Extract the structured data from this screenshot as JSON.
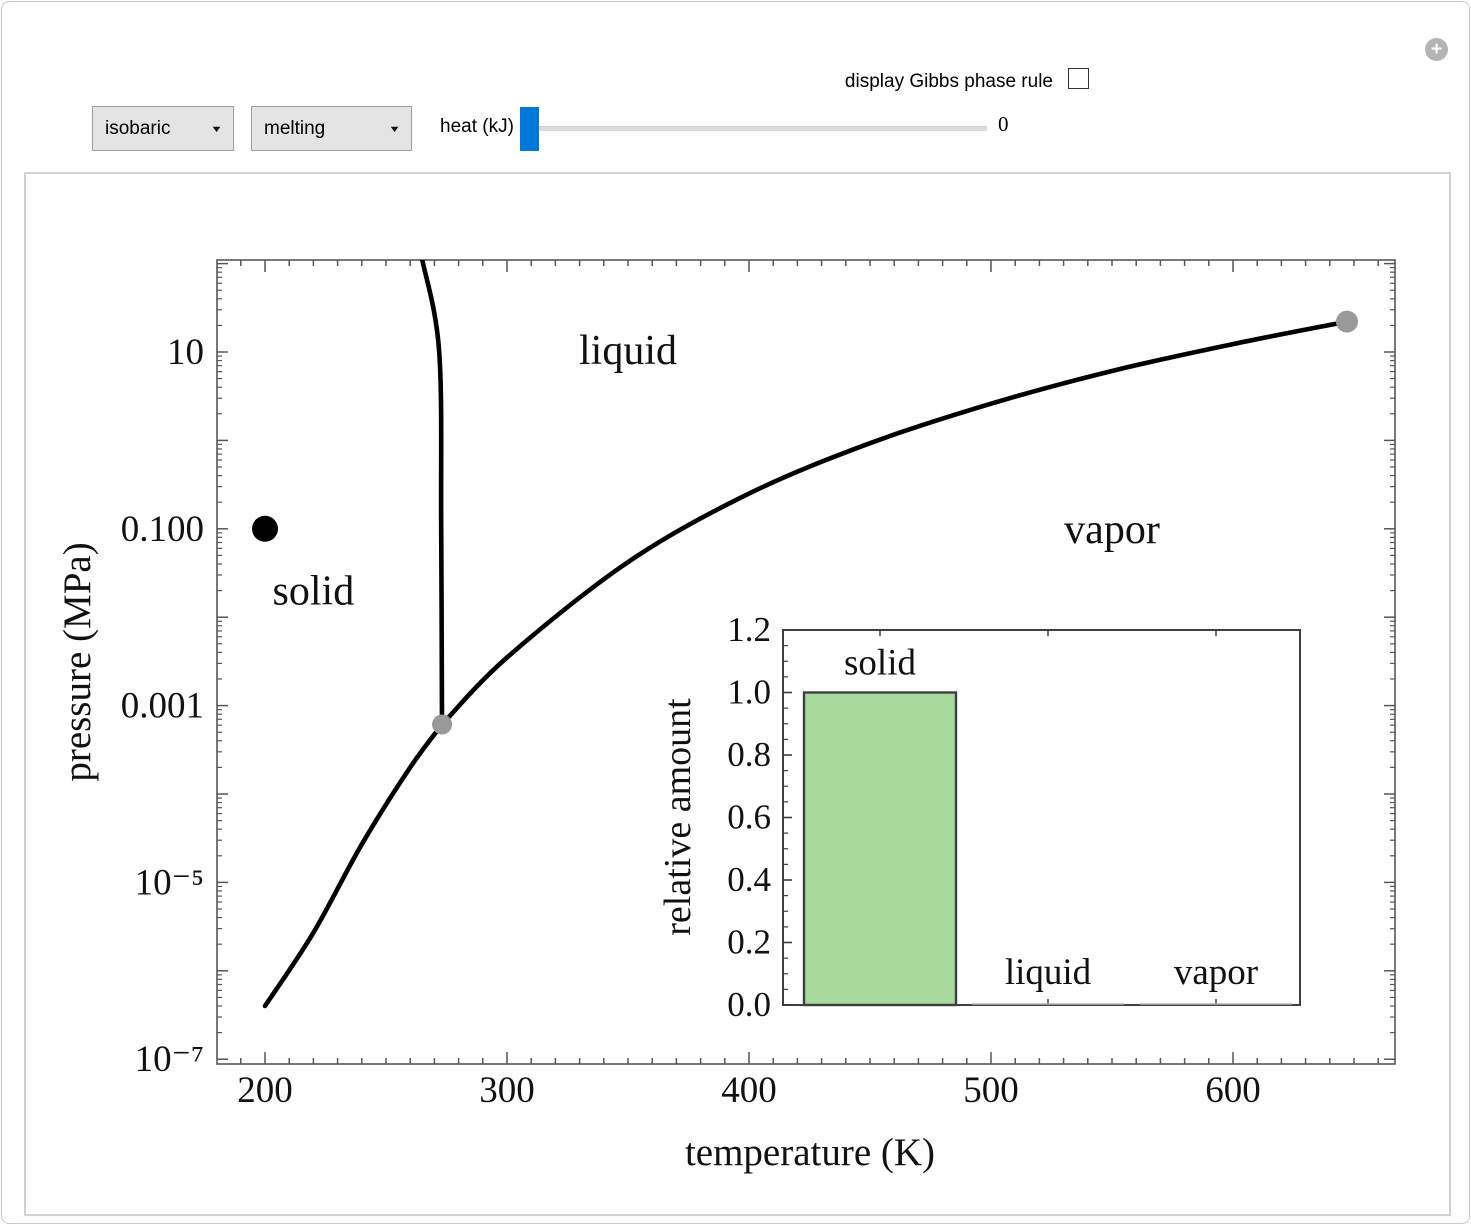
{
  "window": {
    "icons": {
      "expand": "+",
      "caret_down": "▼"
    }
  },
  "controls": {
    "mode_dropdown": {
      "value": "isobaric"
    },
    "process_dropdown": {
      "value": "melting"
    },
    "slider": {
      "label": "heat (kJ)",
      "value": "0"
    },
    "checkbox": {
      "label": "display Gibbs phase rule",
      "checked": false
    }
  },
  "chart_data": [
    {
      "type": "line",
      "name": "pressure-temperature phase diagram",
      "xlabel": "temperature (K)",
      "ylabel": "pressure (MPa)",
      "xlim": [
        180,
        667
      ],
      "ylim": [
        1e-07,
        110
      ],
      "y_scale": "log",
      "x_ticks": [
        200,
        300,
        400,
        500,
        600
      ],
      "y_ticks": [
        {
          "value": 10,
          "label": "10"
        },
        {
          "value": 0.1,
          "label": "0.100"
        },
        {
          "value": 0.001,
          "label": "0.001"
        },
        {
          "value": 1e-05,
          "label": "10⁻⁵"
        },
        {
          "value": 1e-07,
          "label": "10⁻⁷"
        }
      ],
      "series": [
        {
          "name": "sublimation curve",
          "points": [
            [
              200,
              4e-07
            ],
            [
              220,
              2.7e-06
            ],
            [
              240,
              2.7e-05
            ],
            [
              260,
              0.0002
            ],
            [
              273.16,
              0.000612
            ]
          ]
        },
        {
          "name": "melting curve",
          "points": [
            [
              273.16,
              0.000612
            ],
            [
              272.8,
              0.1
            ],
            [
              272,
              10
            ],
            [
              265,
              110
            ]
          ]
        },
        {
          "name": "vaporization curve",
          "points": [
            [
              273.16,
              0.000612
            ],
            [
              300,
              0.0035
            ],
            [
              350,
              0.042
            ],
            [
              400,
              0.25
            ],
            [
              450,
              0.93
            ],
            [
              500,
              2.6
            ],
            [
              550,
              6.1
            ],
            [
              600,
              12.3
            ],
            [
              647.1,
              22.06
            ]
          ]
        }
      ],
      "markers": [
        {
          "name": "state point",
          "x": 200,
          "y": 0.1,
          "color": "#000000",
          "r": 13
        },
        {
          "name": "triple point",
          "x": 273.16,
          "y": 0.000612,
          "color": "#999999",
          "r": 10
        },
        {
          "name": "critical point",
          "x": 647.1,
          "y": 22.06,
          "color": "#999999",
          "r": 11
        }
      ],
      "region_labels": [
        {
          "text": "solid",
          "color": "#00b224",
          "x": 220,
          "y": 0.02
        },
        {
          "text": "liquid",
          "color": "#b84f4b",
          "x": 350,
          "y": 10.5
        },
        {
          "text": "vapor",
          "color": "#4d4de0",
          "x": 550,
          "y": 0.1
        }
      ]
    },
    {
      "type": "bar",
      "name": "relative phase amounts",
      "categories": [
        "solid",
        "liquid",
        "vapor"
      ],
      "values": [
        1.0,
        0.0,
        0.0
      ],
      "ylabel": "relative amount",
      "ylim": [
        0,
        1.2
      ],
      "y_ticks": [
        {
          "value": 0.0,
          "label": "0.0"
        },
        {
          "value": 0.2,
          "label": "0.2"
        },
        {
          "value": 0.4,
          "label": "0.4"
        },
        {
          "value": 0.6,
          "label": "0.6"
        },
        {
          "value": 0.8,
          "label": "0.8"
        },
        {
          "value": 1.0,
          "label": "1.0"
        },
        {
          "value": 1.2,
          "label": "1.2"
        }
      ],
      "bar_color": "#a9da9d",
      "bar_edge_color": "#3f3f3f"
    }
  ]
}
